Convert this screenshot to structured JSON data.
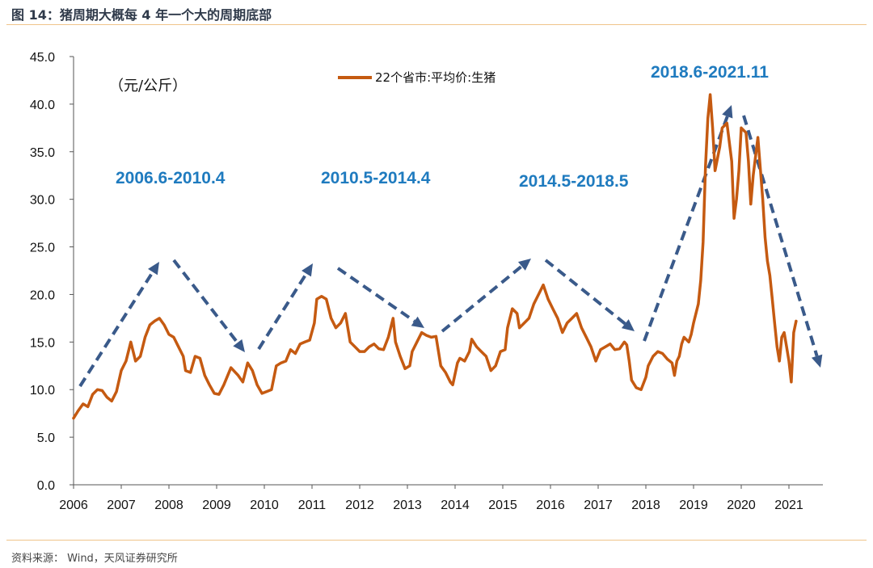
{
  "figure": {
    "title": "图 14：猪周期大概每 4 年一个大的周期底部",
    "source": "资料来源： Wind，天风证券研究所"
  },
  "colors": {
    "series": "#c55a11",
    "arrow": "#3a5a8a",
    "period_label": "#1f7bbf",
    "rule": "#f0c48a"
  },
  "chart_data": {
    "type": "line",
    "unit_label": "（元/公斤）",
    "ylim": [
      0,
      45
    ],
    "xlim": [
      2006,
      2021.7
    ],
    "ytick_labels": [
      "0.0",
      "5.0",
      "10.0",
      "15.0",
      "20.0",
      "25.0",
      "30.0",
      "35.0",
      "40.0",
      "45.0"
    ],
    "ytick_values": [
      0,
      5,
      10,
      15,
      20,
      25,
      30,
      35,
      40,
      45
    ],
    "xtick_labels": [
      "2006",
      "2007",
      "2008",
      "2009",
      "2010",
      "2011",
      "2012",
      "2013",
      "2014",
      "2015",
      "2016",
      "2017",
      "2018",
      "2019",
      "2020",
      "2021"
    ],
    "grid": false,
    "legend_position": "top-center",
    "series": [
      {
        "name": "22个省市:平均价:生猪",
        "points": [
          [
            2006.0,
            7.0
          ],
          [
            2006.1,
            7.8
          ],
          [
            2006.2,
            8.5
          ],
          [
            2006.3,
            8.2
          ],
          [
            2006.4,
            9.5
          ],
          [
            2006.5,
            10.0
          ],
          [
            2006.6,
            9.9
          ],
          [
            2006.7,
            9.2
          ],
          [
            2006.8,
            8.8
          ],
          [
            2006.9,
            9.8
          ],
          [
            2007.0,
            12.0
          ],
          [
            2007.1,
            13.0
          ],
          [
            2007.2,
            15.0
          ],
          [
            2007.3,
            13.0
          ],
          [
            2007.4,
            13.5
          ],
          [
            2007.5,
            15.5
          ],
          [
            2007.6,
            16.8
          ],
          [
            2007.7,
            17.2
          ],
          [
            2007.8,
            17.5
          ],
          [
            2007.9,
            16.8
          ],
          [
            2008.0,
            15.8
          ],
          [
            2008.1,
            15.5
          ],
          [
            2008.2,
            14.5
          ],
          [
            2008.3,
            13.5
          ],
          [
            2008.35,
            12.0
          ],
          [
            2008.45,
            11.8
          ],
          [
            2008.55,
            13.5
          ],
          [
            2008.65,
            13.3
          ],
          [
            2008.75,
            11.5
          ],
          [
            2008.85,
            10.5
          ],
          [
            2008.95,
            9.6
          ],
          [
            2009.05,
            9.5
          ],
          [
            2009.15,
            10.5
          ],
          [
            2009.3,
            12.3
          ],
          [
            2009.45,
            11.5
          ],
          [
            2009.55,
            10.8
          ],
          [
            2009.65,
            12.8
          ],
          [
            2009.75,
            12.0
          ],
          [
            2009.85,
            10.5
          ],
          [
            2009.95,
            9.6
          ],
          [
            2010.05,
            9.8
          ],
          [
            2010.15,
            10.0
          ],
          [
            2010.25,
            12.5
          ],
          [
            2010.35,
            12.8
          ],
          [
            2010.45,
            13.0
          ],
          [
            2010.55,
            14.2
          ],
          [
            2010.65,
            13.8
          ],
          [
            2010.75,
            14.8
          ],
          [
            2010.85,
            15.0
          ],
          [
            2010.95,
            15.2
          ],
          [
            2011.05,
            17.0
          ],
          [
            2011.1,
            19.5
          ],
          [
            2011.2,
            19.8
          ],
          [
            2011.3,
            19.5
          ],
          [
            2011.4,
            17.5
          ],
          [
            2011.5,
            16.5
          ],
          [
            2011.6,
            17.0
          ],
          [
            2011.7,
            18.0
          ],
          [
            2011.8,
            15.0
          ],
          [
            2011.9,
            14.5
          ],
          [
            2012.0,
            14.0
          ],
          [
            2012.1,
            14.0
          ],
          [
            2012.2,
            14.5
          ],
          [
            2012.3,
            14.8
          ],
          [
            2012.4,
            14.3
          ],
          [
            2012.5,
            14.2
          ],
          [
            2012.6,
            15.5
          ],
          [
            2012.7,
            17.5
          ],
          [
            2012.75,
            15.0
          ],
          [
            2012.85,
            13.5
          ],
          [
            2012.95,
            12.2
          ],
          [
            2013.05,
            12.5
          ],
          [
            2013.1,
            14.0
          ],
          [
            2013.2,
            15.0
          ],
          [
            2013.3,
            16.0
          ],
          [
            2013.4,
            15.7
          ],
          [
            2013.5,
            15.5
          ],
          [
            2013.6,
            15.6
          ],
          [
            2013.7,
            12.5
          ],
          [
            2013.8,
            11.8
          ],
          [
            2013.9,
            10.8
          ],
          [
            2013.95,
            10.5
          ],
          [
            2014.05,
            12.8
          ],
          [
            2014.1,
            13.3
          ],
          [
            2014.2,
            13.0
          ],
          [
            2014.3,
            14.0
          ],
          [
            2014.35,
            15.3
          ],
          [
            2014.45,
            14.5
          ],
          [
            2014.55,
            14.0
          ],
          [
            2014.65,
            13.5
          ],
          [
            2014.75,
            12.0
          ],
          [
            2014.85,
            12.5
          ],
          [
            2014.95,
            14.0
          ],
          [
            2015.05,
            14.2
          ],
          [
            2015.1,
            16.5
          ],
          [
            2015.2,
            18.5
          ],
          [
            2015.3,
            18.0
          ],
          [
            2015.35,
            16.5
          ],
          [
            2015.45,
            17.0
          ],
          [
            2015.55,
            17.5
          ],
          [
            2015.65,
            19.0
          ],
          [
            2015.75,
            20.0
          ],
          [
            2015.85,
            21.0
          ],
          [
            2015.95,
            19.5
          ],
          [
            2016.05,
            18.5
          ],
          [
            2016.15,
            17.5
          ],
          [
            2016.25,
            16.0
          ],
          [
            2016.35,
            17.0
          ],
          [
            2016.45,
            17.5
          ],
          [
            2016.55,
            18.0
          ],
          [
            2016.65,
            16.5
          ],
          [
            2016.75,
            15.5
          ],
          [
            2016.85,
            14.5
          ],
          [
            2016.95,
            13.0
          ],
          [
            2017.05,
            14.2
          ],
          [
            2017.15,
            14.5
          ],
          [
            2017.25,
            14.8
          ],
          [
            2017.35,
            14.2
          ],
          [
            2017.45,
            14.3
          ],
          [
            2017.55,
            15.0
          ],
          [
            2017.6,
            14.7
          ],
          [
            2017.65,
            13.0
          ],
          [
            2017.7,
            11.0
          ],
          [
            2017.8,
            10.2
          ],
          [
            2017.9,
            10.0
          ],
          [
            2018.0,
            11.3
          ],
          [
            2018.05,
            12.5
          ],
          [
            2018.15,
            13.5
          ],
          [
            2018.25,
            14.0
          ],
          [
            2018.35,
            13.8
          ],
          [
            2018.45,
            13.2
          ],
          [
            2018.55,
            12.8
          ],
          [
            2018.6,
            11.5
          ],
          [
            2018.65,
            13.0
          ],
          [
            2018.7,
            13.5
          ],
          [
            2018.75,
            14.8
          ],
          [
            2018.8,
            15.5
          ],
          [
            2018.9,
            15.0
          ],
          [
            2018.95,
            15.8
          ],
          [
            2019.0,
            17.0
          ],
          [
            2019.1,
            19.0
          ],
          [
            2019.15,
            21.5
          ],
          [
            2019.2,
            25.5
          ],
          [
            2019.25,
            33.5
          ],
          [
            2019.3,
            38.5
          ],
          [
            2019.35,
            41.0
          ],
          [
            2019.4,
            37.5
          ],
          [
            2019.45,
            33.0
          ],
          [
            2019.55,
            35.5
          ],
          [
            2019.6,
            37.5
          ],
          [
            2019.7,
            38.0
          ],
          [
            2019.8,
            34.0
          ],
          [
            2019.85,
            28.0
          ],
          [
            2019.9,
            30.0
          ],
          [
            2019.95,
            33.0
          ],
          [
            2020.0,
            37.5
          ],
          [
            2020.1,
            37.0
          ],
          [
            2020.15,
            34.0
          ],
          [
            2020.2,
            29.5
          ],
          [
            2020.25,
            32.5
          ],
          [
            2020.35,
            36.5
          ],
          [
            2020.45,
            30.0
          ],
          [
            2020.5,
            26.0
          ],
          [
            2020.55,
            23.5
          ],
          [
            2020.6,
            22.0
          ],
          [
            2020.65,
            19.5
          ],
          [
            2020.7,
            17.0
          ],
          [
            2020.75,
            14.5
          ],
          [
            2020.8,
            13.0
          ],
          [
            2020.85,
            15.5
          ],
          [
            2020.9,
            16.0
          ],
          [
            2020.95,
            14.5
          ],
          [
            2021.0,
            13.0
          ],
          [
            2021.05,
            10.8
          ],
          [
            2021.1,
            16.0
          ],
          [
            2021.15,
            17.2
          ]
        ]
      }
    ],
    "period_labels": [
      "2006.6-2010.4",
      "2010.5-2014.4",
      "2014.5-2018.5",
      "2018.6-2021.11"
    ]
  }
}
